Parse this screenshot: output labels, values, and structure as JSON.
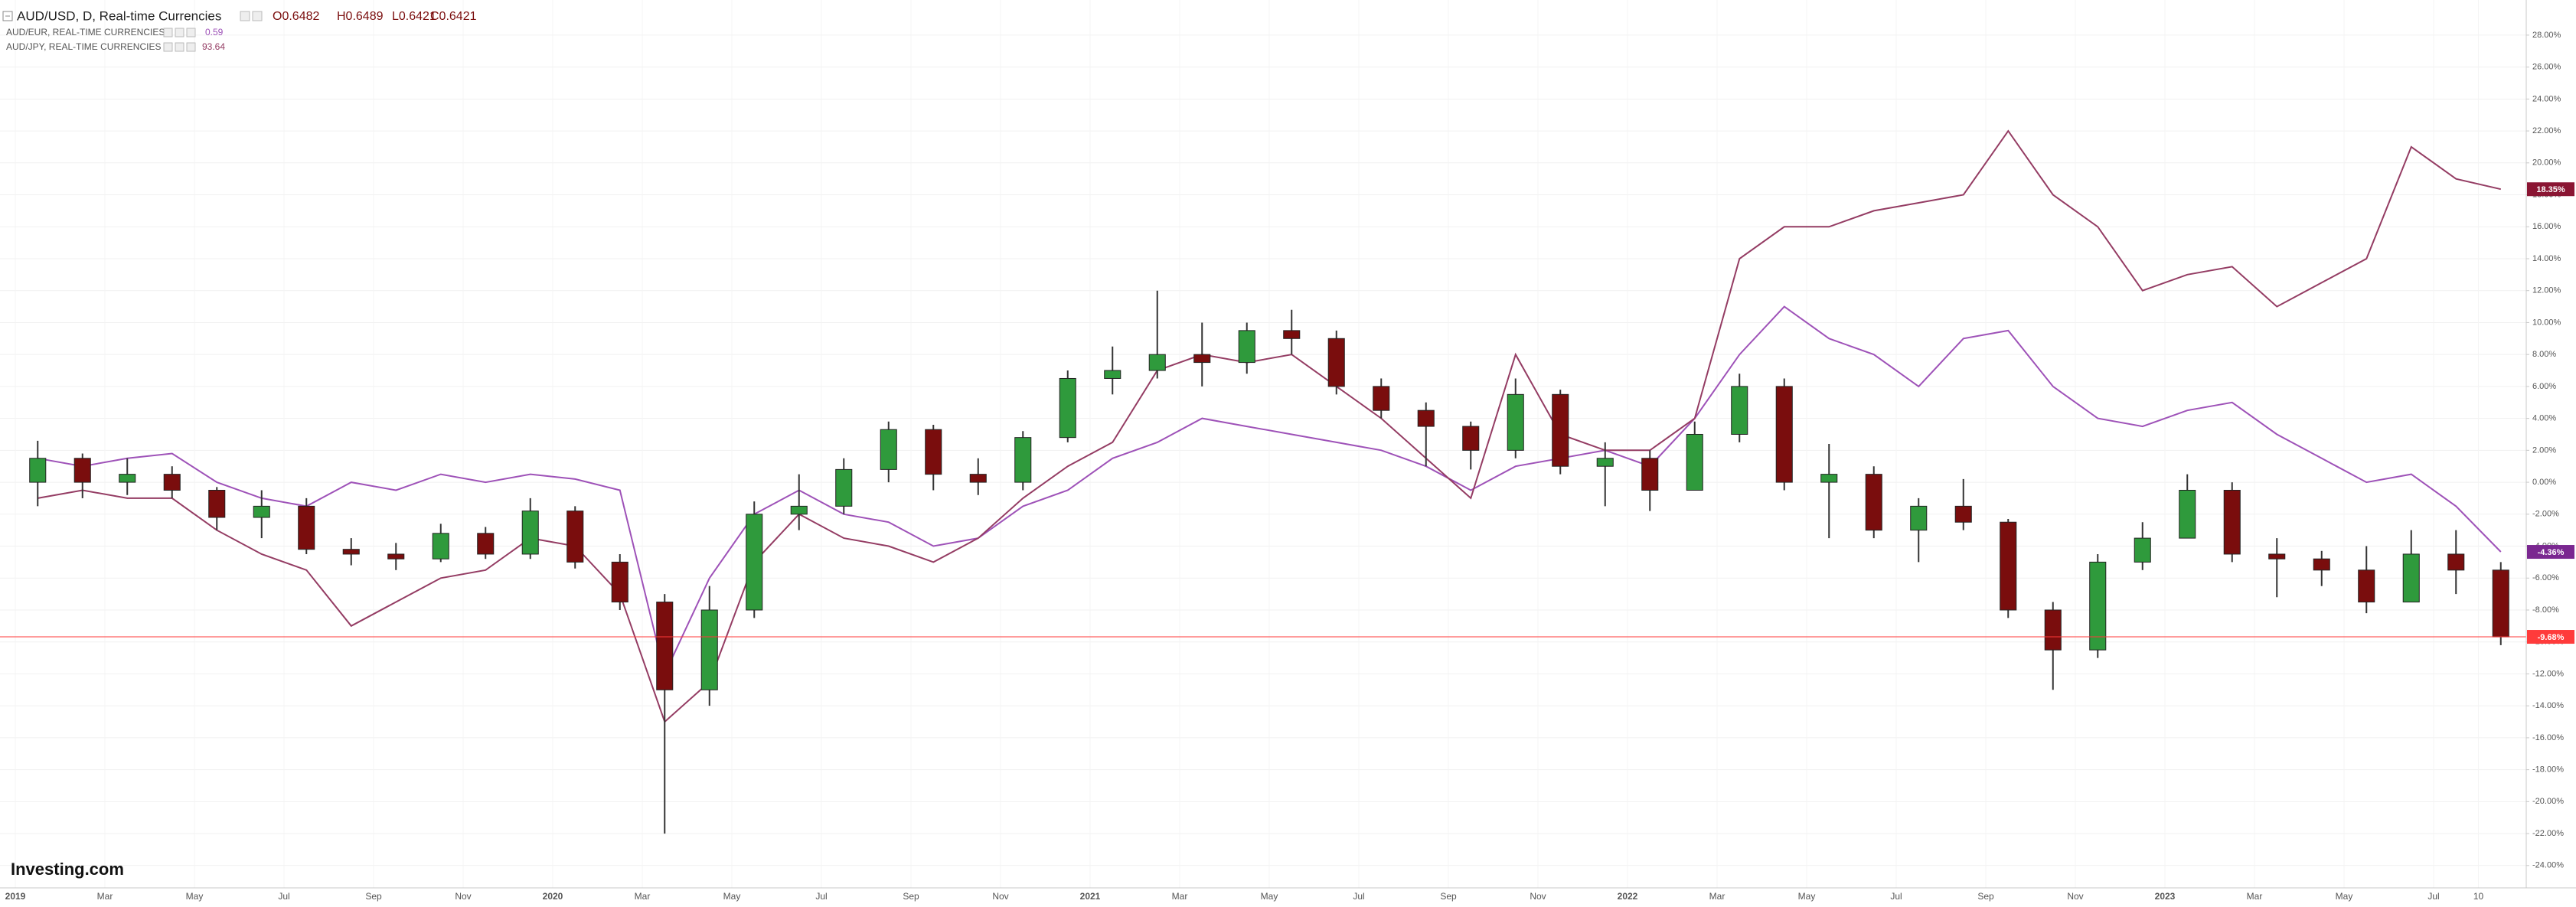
{
  "chart_data": {
    "type": "candlestick",
    "categories": [
      "2019",
      null,
      "Mar",
      null,
      "May",
      null,
      "Jul",
      null,
      "Sep",
      null,
      "Nov",
      null,
      "2020",
      null,
      "Mar",
      null,
      "May",
      null,
      "Jul",
      null,
      "Sep",
      null,
      "Nov",
      null,
      "2021",
      null,
      "Mar",
      null,
      "May",
      null,
      "Jul",
      null,
      "Sep",
      null,
      "Nov",
      null,
      "2022",
      null,
      "Mar",
      null,
      "May",
      null,
      "Jul",
      null,
      "Sep",
      null,
      "Nov",
      null,
      "2023",
      null,
      "Mar",
      null,
      "May",
      null,
      "Jul",
      "10"
    ],
    "series": [
      {
        "name": "AUD/USD, D, Real-time Currencies",
        "type": "candlestick",
        "color": "#ff3b3b",
        "up_color": "#2f9a3c",
        "down_color": "#7a0d0d",
        "quote": [
          "O0.6482",
          "H0.6489",
          "L0.6421",
          "C0.6421"
        ],
        "open": [
          0,
          1.5,
          0,
          0.5,
          -0.5,
          -2.2,
          -1.5,
          -4.2,
          -4.5,
          -4.8,
          -3.2,
          -4.5,
          -1.8,
          -5,
          -7.5,
          -13,
          -8,
          -2,
          -1.5,
          0.8,
          3.3,
          0.5,
          0,
          2.8,
          6.5,
          7,
          8,
          7.5,
          9.5,
          9,
          6,
          4.5,
          3.5,
          2,
          5.5,
          1,
          1.5,
          -0.5,
          3,
          6,
          0,
          0.5,
          -3,
          -1.5,
          -2.5,
          -8,
          -10.5,
          -5,
          -3.5,
          -0.5,
          -4.5,
          -4.8,
          -5.5,
          -7.5,
          -4.5,
          -5.5
        ],
        "high": [
          2.6,
          1.8,
          1.5,
          1,
          -0.3,
          -0.5,
          -1,
          -3.5,
          -3.8,
          -2.6,
          -2.8,
          -1,
          -1.5,
          -4.5,
          -7,
          -6.5,
          -1.2,
          0.5,
          1.5,
          3.8,
          3.6,
          1.5,
          3.2,
          7,
          8.5,
          12,
          10,
          10,
          10.8,
          9.5,
          6.5,
          5,
          3.8,
          6.5,
          5.8,
          2.5,
          2,
          3.8,
          6.8,
          6.5,
          2.4,
          1,
          -1,
          0.2,
          -2.3,
          -7.5,
          -4.5,
          -2.5,
          0.5,
          0,
          -3.5,
          -4.3,
          -4,
          -3,
          -3,
          -5
        ],
        "low": [
          -1.5,
          -1,
          -0.8,
          -1,
          -3,
          -3.5,
          -4.5,
          -5.2,
          -5.5,
          -5,
          -4.8,
          -4.8,
          -5.4,
          -8,
          -22,
          -14,
          -8.5,
          -3,
          -2,
          0,
          -0.5,
          -0.8,
          -0.5,
          2.5,
          5.5,
          6.5,
          6,
          6.8,
          8,
          5.5,
          4,
          1,
          0.8,
          1.5,
          0.5,
          -1.5,
          -1.8,
          -0.5,
          2.5,
          -0.5,
          -3.5,
          -3.5,
          -5,
          -3,
          -8.5,
          -13,
          -11,
          -5.5,
          -3.5,
          -5,
          -7.2,
          -6.5,
          -8.2,
          -7.5,
          -7,
          -10.2
        ],
        "close": [
          1.5,
          0,
          0.5,
          -0.5,
          -2.2,
          -1.5,
          -4.2,
          -4.5,
          -4.8,
          -3.2,
          -4.5,
          -1.8,
          -5,
          -7.5,
          -13,
          -8,
          -2,
          -1.5,
          0.8,
          3.3,
          0.5,
          0,
          2.8,
          6.5,
          7,
          8,
          7.5,
          9.5,
          9,
          6,
          4.5,
          3.5,
          2,
          5.5,
          1,
          1.5,
          -0.5,
          3,
          6,
          0,
          0.5,
          -3,
          -1.5,
          -2.5,
          -8,
          -10.5,
          -5,
          -3.5,
          -0.5,
          -4.5,
          -4.8,
          -5.5,
          -7.5,
          -4.5,
          -5.5,
          -9.68
        ],
        "value_labels": [
          null,
          null,
          null,
          null,
          null,
          null,
          null,
          null,
          null,
          null,
          null,
          null,
          null,
          null,
          null,
          null,
          null,
          null,
          null,
          null,
          null,
          null,
          null,
          null,
          null,
          null,
          null,
          null,
          null,
          null,
          null,
          null,
          null,
          null,
          null,
          null,
          null,
          null,
          null,
          null,
          null,
          null,
          null,
          null,
          null,
          null,
          null,
          null,
          null,
          null,
          null,
          null,
          null,
          null,
          null,
          "-9.68%"
        ]
      },
      {
        "name": "AUD/EUR, REAL-TIME CURRENCIES",
        "type": "line",
        "color": "#9e52b8",
        "tag_color": "#7a2790",
        "last_price": "0.59",
        "values": [
          1.5,
          1,
          1.5,
          1.8,
          0,
          -1,
          -1.5,
          0,
          -0.5,
          0.5,
          0,
          0.5,
          0.2,
          -0.5,
          -12,
          -6,
          -2,
          -0.5,
          -2,
          -2.5,
          -4,
          -3.5,
          -1.5,
          -0.5,
          1.5,
          2.5,
          4,
          3.5,
          3,
          2.5,
          2,
          1,
          -0.5,
          1,
          1.5,
          2,
          1,
          4,
          8,
          11,
          9,
          8,
          6,
          9,
          9.5,
          6,
          4,
          3.5,
          4.5,
          5,
          3,
          1.5,
          0,
          0.5,
          -1.5,
          -4.36
        ],
        "value_labels": [
          null,
          null,
          null,
          null,
          null,
          null,
          null,
          null,
          null,
          null,
          null,
          null,
          null,
          null,
          null,
          null,
          null,
          null,
          null,
          null,
          null,
          null,
          null,
          null,
          null,
          null,
          null,
          null,
          null,
          null,
          null,
          null,
          null,
          null,
          null,
          null,
          null,
          null,
          null,
          null,
          null,
          null,
          null,
          null,
          null,
          null,
          null,
          null,
          null,
          null,
          null,
          null,
          null,
          null,
          null,
          "-4.36%"
        ]
      },
      {
        "name": "AUD/JPY, REAL-TIME CURRENCIES",
        "type": "line",
        "color": "#943c63",
        "tag_color": "#8a1533",
        "last_price": "93.64",
        "values": [
          -1,
          -0.5,
          -1,
          -1,
          -3,
          -4.5,
          -5.5,
          -9,
          -7.5,
          -6,
          -5.5,
          -3.5,
          -4,
          -7,
          -15,
          -12.5,
          -5,
          -2,
          -3.5,
          -4,
          -5,
          -3.5,
          -1,
          1,
          2.5,
          7,
          8,
          7.5,
          8,
          6,
          4,
          1.5,
          -1,
          8,
          3,
          2,
          2,
          4,
          14,
          16,
          16,
          17,
          17.5,
          18,
          22,
          18,
          16,
          12,
          13,
          13.5,
          11,
          12.5,
          14,
          21,
          19,
          18.35
        ],
        "value_labels": [
          null,
          null,
          null,
          null,
          null,
          null,
          null,
          null,
          null,
          null,
          null,
          null,
          null,
          null,
          null,
          null,
          null,
          null,
          null,
          null,
          null,
          null,
          null,
          null,
          null,
          null,
          null,
          null,
          null,
          null,
          null,
          null,
          null,
          null,
          null,
          null,
          null,
          null,
          null,
          null,
          null,
          null,
          null,
          null,
          null,
          null,
          null,
          null,
          null,
          null,
          null,
          null,
          null,
          null,
          null,
          "18.35%"
        ]
      }
    ],
    "ylim": [
      -25.4,
      30.2
    ],
    "yticks": [
      {
        "value": 28,
        "label": "28.00%"
      },
      {
        "value": 26,
        "label": "26.00%"
      },
      {
        "value": 24,
        "label": "24.00%"
      },
      {
        "value": 22,
        "label": "22.00%"
      },
      {
        "value": 20,
        "label": "20.00%"
      },
      {
        "value": 18,
        "label": "18.00%"
      },
      {
        "value": 16,
        "label": "16.00%"
      },
      {
        "value": 14,
        "label": "14.00%"
      },
      {
        "value": 12,
        "label": "12.00%"
      },
      {
        "value": 10,
        "label": "10.00%"
      },
      {
        "value": 8,
        "label": "8.00%"
      },
      {
        "value": 6,
        "label": "6.00%"
      },
      {
        "value": 4,
        "label": "4.00%"
      },
      {
        "value": 2,
        "label": "2.00%"
      },
      {
        "value": 0,
        "label": "0.00%"
      },
      {
        "value": -2,
        "label": "-2.00%"
      },
      {
        "value": -4,
        "label": "-4.00%"
      },
      {
        "value": -6,
        "label": "-6.00%"
      },
      {
        "value": -8,
        "label": "-8.00%"
      },
      {
        "value": -10,
        "label": "-10.00%"
      },
      {
        "value": -12,
        "label": "-12.00%"
      },
      {
        "value": -14,
        "label": "-14.00%"
      },
      {
        "value": -16,
        "label": "-16.00%"
      },
      {
        "value": -18,
        "label": "-18.00%"
      },
      {
        "value": -20,
        "label": "-20.00%"
      },
      {
        "value": -22,
        "label": "-22.00%"
      },
      {
        "value": -24,
        "label": "-24.00%"
      }
    ],
    "grid": true,
    "brand": "Investing.com"
  }
}
